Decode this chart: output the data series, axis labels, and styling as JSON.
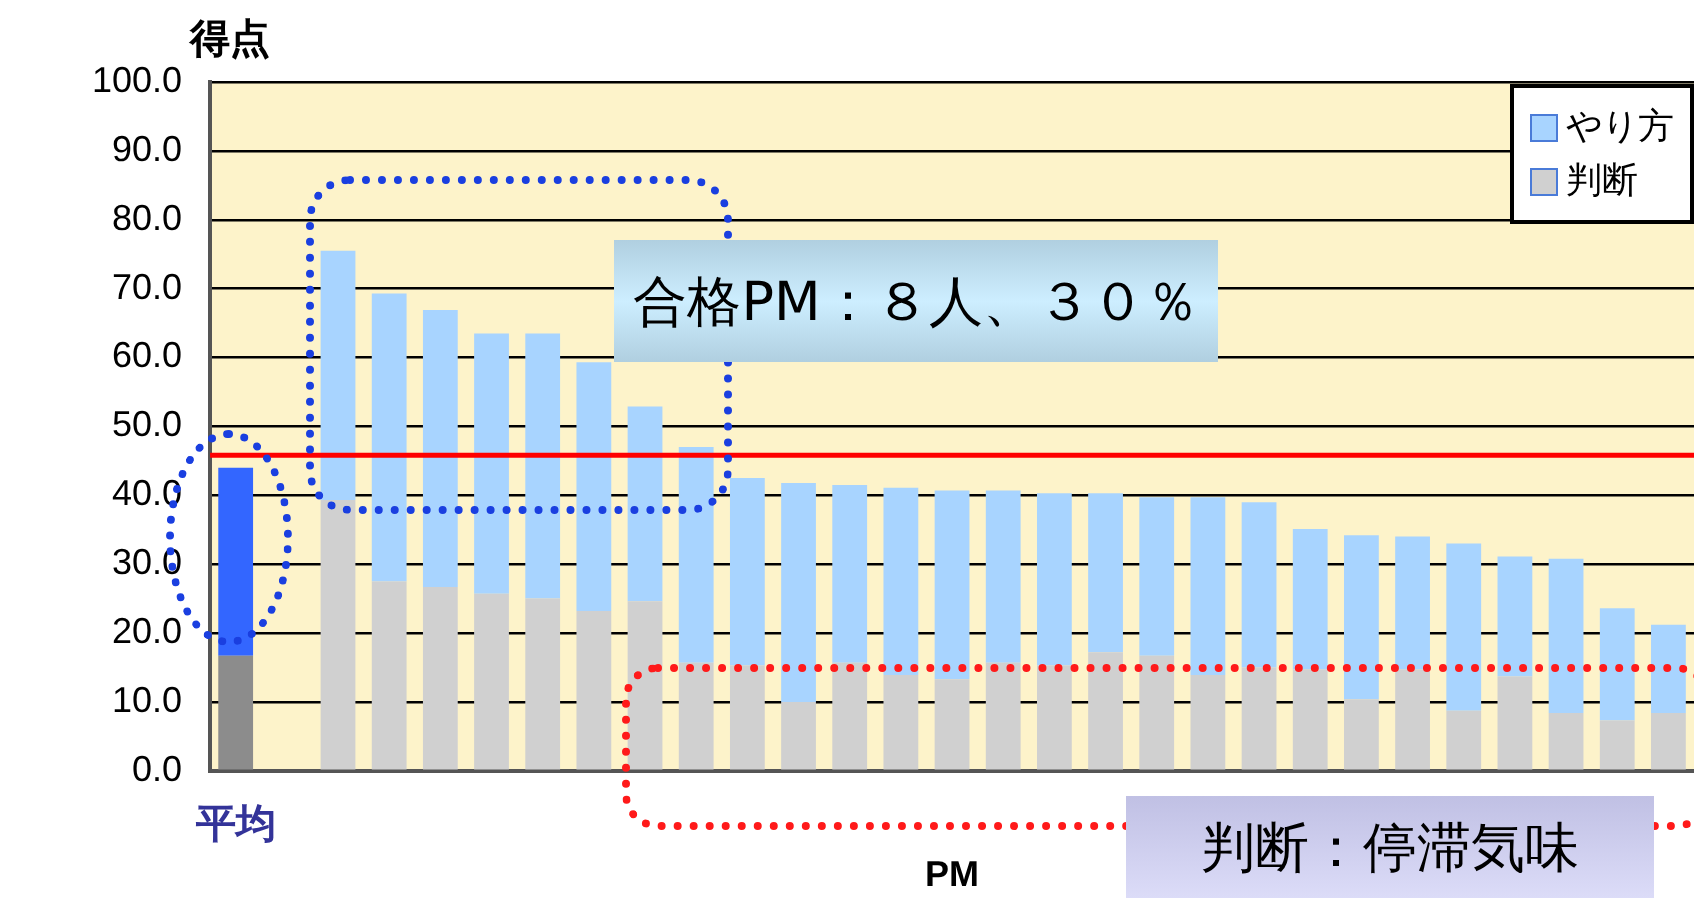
{
  "chart_data": {
    "type": "bar",
    "stacked": true,
    "ylabel": "得点",
    "xlabel": "PM",
    "categories": [
      "平均",
      null,
      null,
      null,
      null,
      null,
      null,
      null,
      null,
      null,
      null,
      null,
      null,
      null,
      null,
      null,
      null,
      null,
      null,
      null,
      null,
      null,
      null,
      null,
      null,
      null,
      null,
      null,
      null
    ],
    "series": [
      {
        "name": "判断",
        "color": "#d0d0d0",
        "colors": [
          "#8c8c8c",
          null,
          "#d0d0d0",
          "#d0d0d0",
          "#d0d0d0",
          "#d0d0d0",
          "#d0d0d0",
          "#d0d0d0",
          "#d0d0d0",
          "#d0d0d0",
          "#d0d0d0",
          "#d0d0d0",
          "#d0d0d0",
          "#d0d0d0",
          "#d0d0d0",
          "#d0d0d0",
          "#d0d0d0",
          "#d0d0d0",
          "#d0d0d0",
          "#d0d0d0",
          "#d0d0d0",
          "#d0d0d0",
          "#d0d0d0",
          "#d0d0d0",
          "#d0d0d0",
          "#d0d0d0",
          "#d0d0d0",
          "#d0d0d0",
          "#d0d0d0"
        ],
        "values": [
          16.7,
          null,
          39.3,
          27.5,
          26.7,
          25.7,
          25.0,
          23.2,
          24.6,
          15.7,
          15.3,
          10.0,
          15.7,
          13.9,
          13.3,
          15.7,
          15.3,
          17.2,
          16.7,
          13.9,
          15.0,
          14.7,
          10.4,
          14.7,
          8.7,
          13.7,
          8.4,
          7.3,
          8.4
        ]
      },
      {
        "name": "やり方",
        "color": "#a8d4ff",
        "colors": [
          "#3366ff",
          null,
          "#a8d4ff",
          "#a8d4ff",
          "#a8d4ff",
          "#a8d4ff",
          "#a8d4ff",
          "#a8d4ff",
          "#a8d4ff",
          "#a8d4ff",
          "#a8d4ff",
          "#a8d4ff",
          "#a8d4ff",
          "#a8d4ff",
          "#a8d4ff",
          "#a8d4ff",
          "#a8d4ff",
          "#a8d4ff",
          "#a8d4ff",
          "#a8d4ff",
          "#a8d4ff",
          "#a8d4ff",
          "#a8d4ff",
          "#a8d4ff",
          "#a8d4ff",
          "#a8d4ff",
          "#a8d4ff",
          "#a8d4ff",
          "#a8d4ff"
        ],
        "values": [
          27.3,
          null,
          36.2,
          41.8,
          40.2,
          37.8,
          38.5,
          36.1,
          28.3,
          31.3,
          27.2,
          31.8,
          25.8,
          27.2,
          27.4,
          25.0,
          25.0,
          23.1,
          23.0,
          25.8,
          24.0,
          20.4,
          23.8,
          19.3,
          24.3,
          17.4,
          22.4,
          16.3,
          12.8
        ]
      }
    ],
    "ylim": [
      0,
      100
    ],
    "yticks": [
      {
        "value": 0,
        "label": "0.0"
      },
      {
        "value": 10,
        "label": "10.0"
      },
      {
        "value": 20,
        "label": "20.0"
      },
      {
        "value": 30,
        "label": "30.0"
      },
      {
        "value": 40,
        "label": "40.0"
      },
      {
        "value": 50,
        "label": "50.0"
      },
      {
        "value": 60,
        "label": "60.0"
      },
      {
        "value": 70,
        "label": "70.0"
      },
      {
        "value": 80,
        "label": "80.0"
      },
      {
        "value": 90,
        "label": "90.0"
      },
      {
        "value": 100,
        "label": "100.0"
      }
    ],
    "grid": "y",
    "legend": "top right",
    "ref_lines": [
      {
        "axis": "y",
        "value": 45.8,
        "color": "#ff0000"
      }
    ],
    "annotations": [
      "合格PM：８人、３０％",
      "判断：停滞気味"
    ]
  }
}
